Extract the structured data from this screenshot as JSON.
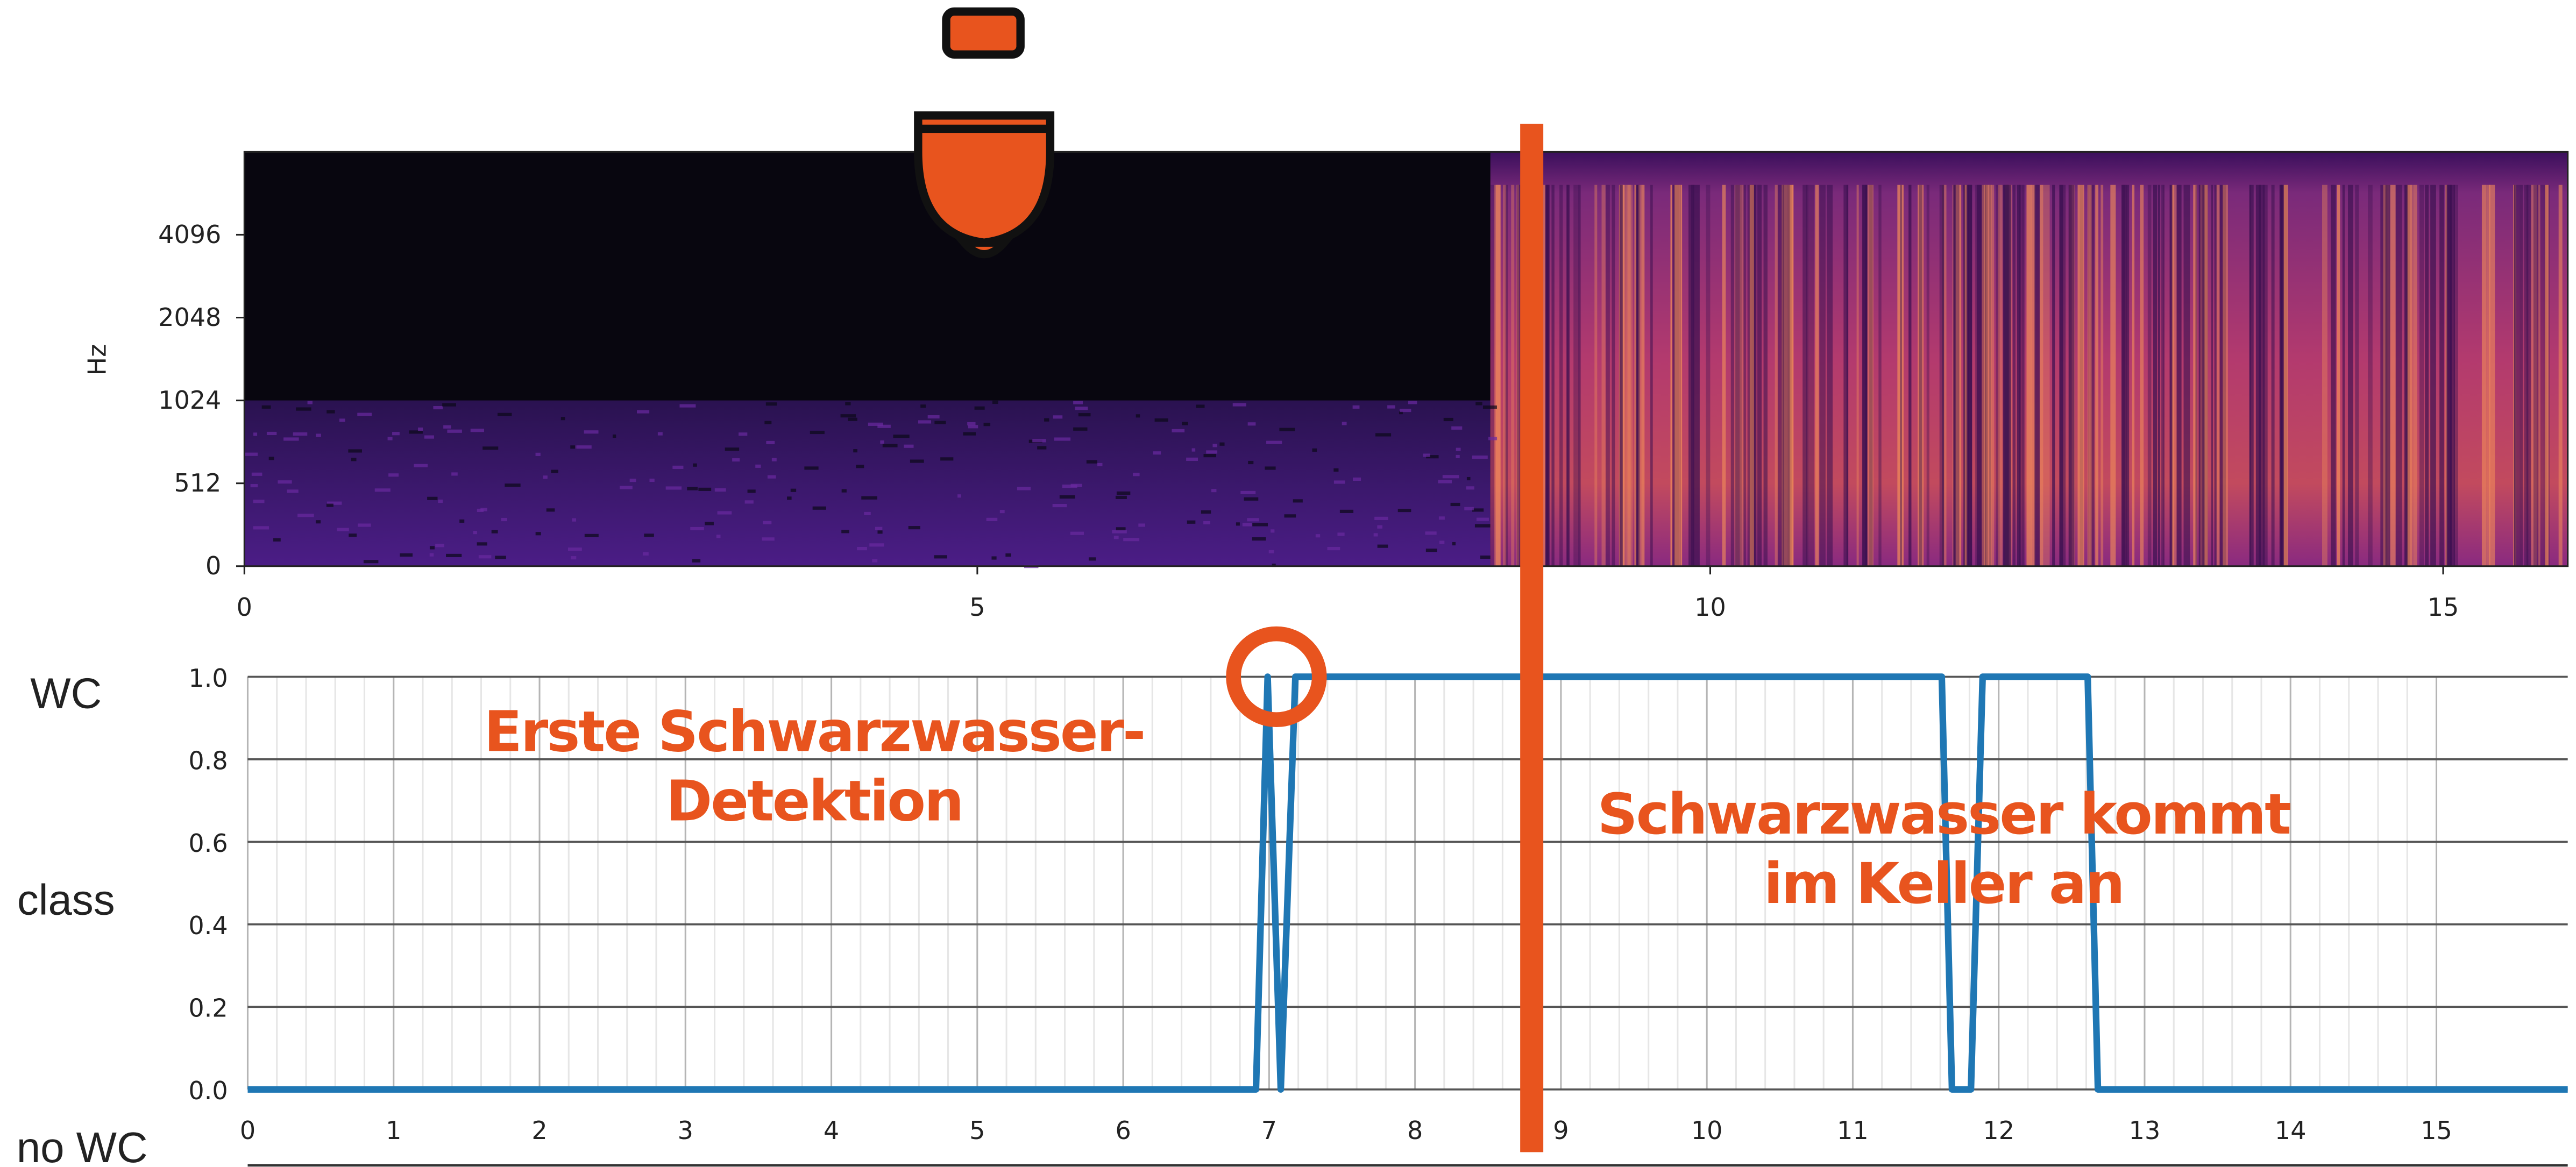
{
  "chart_data": [
    {
      "type": "spectrogram",
      "ylabel": "Hz",
      "xlim": [
        0,
        15.85
      ],
      "xticks": [
        0,
        5,
        10,
        15
      ],
      "ylim": [
        0,
        8192
      ],
      "yticks": [
        0,
        512,
        1024,
        2048,
        4096
      ],
      "yscale": "symlog",
      "linthresh": 512
    },
    {
      "type": "line",
      "xlim": [
        0,
        15.9
      ],
      "xticks": [
        0,
        1,
        2,
        3,
        4,
        5,
        6,
        7,
        8,
        9,
        10,
        11,
        12,
        13,
        14,
        15
      ],
      "ylim": [
        0,
        1
      ],
      "yticks": [
        {
          "value": 0,
          "label": "0.0"
        },
        {
          "value": 0.2,
          "label": "0.2"
        },
        {
          "value": 0.4,
          "label": "0.4"
        },
        {
          "value": 0.6,
          "label": "0.6"
        },
        {
          "value": 0.8,
          "label": "0.8"
        },
        {
          "value": 1,
          "label": "1.0"
        }
      ],
      "y_labels": [
        "WC",
        "class",
        "no WC"
      ],
      "grid": true,
      "x": [
        0,
        6.91,
        6.99,
        7.08,
        7.18,
        11.61,
        11.68,
        11.81,
        11.89,
        12.61,
        12.68,
        15.9
      ],
      "series": [
        {
          "color": "#1f77b4",
          "values": [
            0,
            0,
            1,
            0,
            1,
            1,
            0,
            0,
            1,
            1,
            0,
            0
          ]
        }
      ],
      "vline": {
        "x": 8.8,
        "color": "#e8541e"
      },
      "highlight": {
        "x": 7.05,
        "y": 1,
        "color": "#e8541e"
      },
      "annotations": [
        {
          "lines": [
            "Erste Schwarzwasser-",
            "Detektion"
          ],
          "color": "#e8541e"
        },
        {
          "lines": [
            "Schwarzwasser kommt",
            "im Keller an"
          ],
          "color": "#e8541e"
        }
      ]
    }
  ]
}
